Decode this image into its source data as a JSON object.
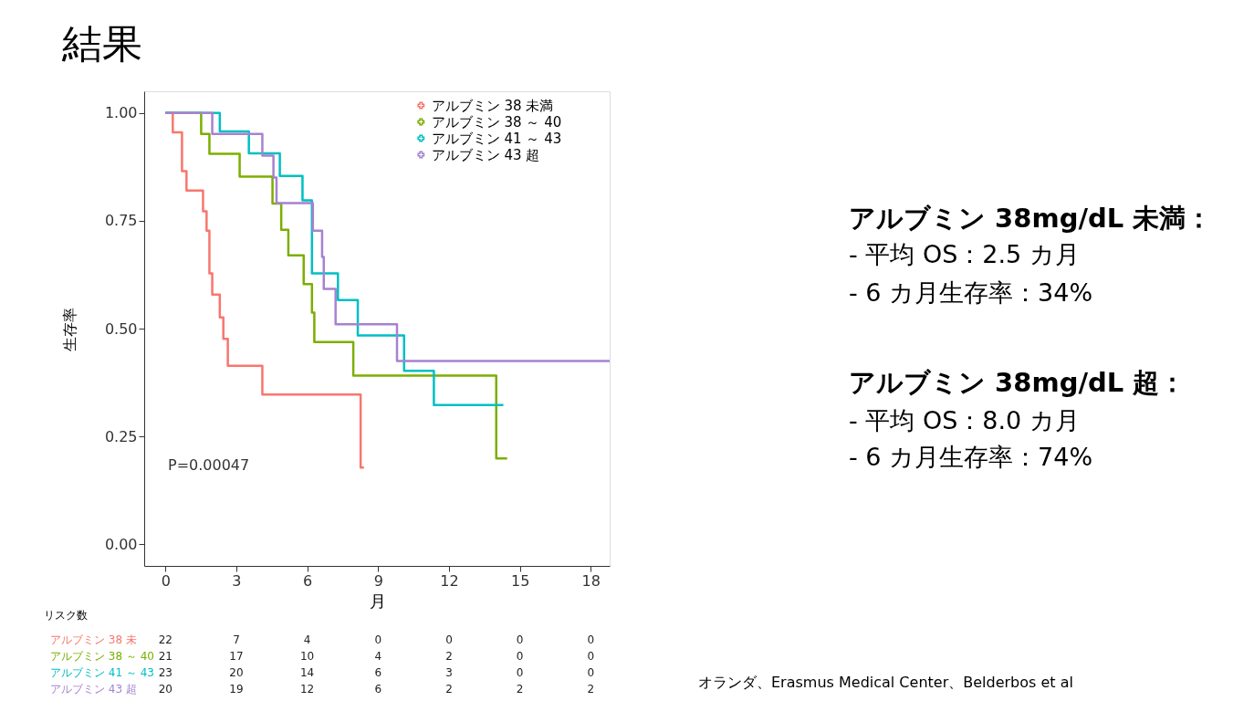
{
  "chart_data": {
    "type": "step",
    "title": "結果",
    "xlabel": "月",
    "ylabel": "生存率",
    "xlim": [
      -0.9,
      18.8
    ],
    "xticks": [
      0,
      3,
      6,
      9,
      12,
      15,
      18
    ],
    "ylim": [
      -0.05,
      1.05
    ],
    "yticks": [
      {
        "value": 0,
        "label": "0.00"
      },
      {
        "value": 0.25,
        "label": "0.25"
      },
      {
        "value": 0.5,
        "label": "0.50"
      },
      {
        "value": 0.75,
        "label": "0.75"
      },
      {
        "value": 1,
        "label": "1.00"
      }
    ],
    "grid": false,
    "legend": "top right",
    "line_style": "solid",
    "series": [
      {
        "name": "アルブミン 38 未満",
        "color": "#f8766d",
        "x": [
          0,
          0.31,
          0.7,
          0.89,
          1.59,
          1.74,
          1.86,
          1.98,
          2.3,
          2.45,
          2.64,
          4.1,
          8.26,
          8.4
        ],
        "values": [
          1.0,
          0.955,
          0.865,
          0.82,
          0.772,
          0.727,
          0.628,
          0.579,
          0.526,
          0.476,
          0.414,
          0.347,
          0.178,
          0.178
        ]
      },
      {
        "name": "アルブミン 38 ～ 40",
        "color": "#7cae00",
        "x": [
          0,
          1.51,
          1.86,
          3.14,
          4.53,
          4.9,
          5.2,
          5.85,
          6.2,
          6.3,
          7.95,
          14.0,
          14.46
        ],
        "values": [
          1.0,
          0.951,
          0.905,
          0.852,
          0.79,
          0.729,
          0.67,
          0.603,
          0.537,
          0.469,
          0.391,
          0.199,
          0.199
        ]
      },
      {
        "name": "アルブミン 41 ～ 43",
        "color": "#00bfc4",
        "x": [
          0,
          2.3,
          3.53,
          4.84,
          5.8,
          6.2,
          7.3,
          8.14,
          10.1,
          11.36,
          14.3
        ],
        "values": [
          1.0,
          0.957,
          0.906,
          0.854,
          0.797,
          0.628,
          0.566,
          0.484,
          0.402,
          0.323,
          0.323
        ]
      },
      {
        "name": "アルブミン 43 超",
        "color": "#a683cf",
        "x": [
          0,
          1.98,
          4.1,
          4.57,
          4.7,
          6.24,
          6.63,
          6.7,
          7.2,
          9.8,
          18.8
        ],
        "values": [
          1.0,
          0.951,
          0.901,
          0.85,
          0.791,
          0.727,
          0.666,
          0.592,
          0.51,
          0.425,
          0.425
        ]
      }
    ],
    "annotations": [
      "P=0.00047",
      "リスク数",
      "アルブミン 38 未 22 7 4 0 0 0 0",
      "アルブミン 38 ～ 40 21 17 10 4 2 0 0",
      "アルブミン 41 ～ 43 23 20 14 6 3 0 0",
      "アルブミン 43 超 20 19 12 6 2 2 2",
      "アルブミン 38mg/dL 未満：",
      "- 平均 OS：2.5 カ月",
      "- 6 カ月生存率：34%",
      "アルブミン 38mg/dL 超：",
      "- 平均 OS：8.0 カ月",
      "- 6 カ月生存率：74%",
      "オランダ、Erasmus Medical Center、Belderbos et al"
    ]
  }
}
